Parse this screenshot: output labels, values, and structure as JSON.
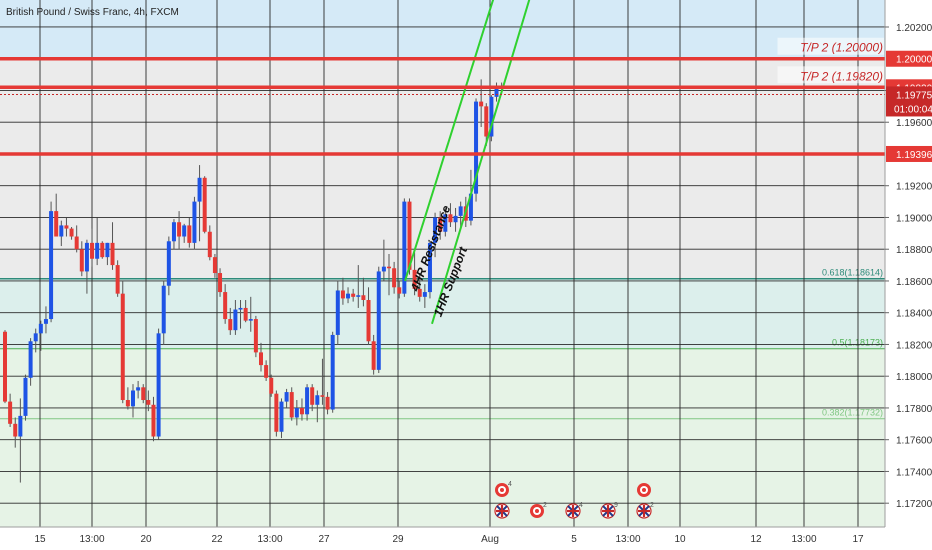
{
  "header": {
    "symbol_title": "British Pound / Swiss Franc, 4h, FXCM"
  },
  "colors": {
    "up": "#1e53e5",
    "down": "#e53935",
    "wick": "#555555",
    "zone_blue": "#d5eaf7",
    "zone_gray": "#ebebeb",
    "zone_teal": "#dcefec",
    "zone_green": "#e6f3e6",
    "grid": "#2a2a2a",
    "red_line": "#e53935",
    "green_line": "#2fd12f",
    "fib_618": "#2e8b7a",
    "fib_5": "#4caf50",
    "fib_382": "#81c784"
  },
  "chart_data": {
    "type": "candlestick",
    "ylim": [
      1.1705,
      1.2037
    ],
    "y_ticks": [
      {
        "v": 1.202,
        "label": "1.20200"
      },
      {
        "v": 1.198,
        "label": "1.19800"
      },
      {
        "v": 1.196,
        "label": "1.19600"
      },
      {
        "v": 1.192,
        "label": "1.19200"
      },
      {
        "v": 1.19,
        "label": "1.19000"
      },
      {
        "v": 1.188,
        "label": "1.18800"
      },
      {
        "v": 1.186,
        "label": "1.18600"
      },
      {
        "v": 1.184,
        "label": "1.18400"
      },
      {
        "v": 1.182,
        "label": "1.18200"
      },
      {
        "v": 1.18,
        "label": "1.18000"
      },
      {
        "v": 1.178,
        "label": "1.17800"
      },
      {
        "v": 1.176,
        "label": "1.17600"
      },
      {
        "v": 1.174,
        "label": "1.17400"
      },
      {
        "v": 1.172,
        "label": "1.17200"
      }
    ],
    "x_labels": [
      "15",
      "13:00",
      "20",
      "22",
      "13:00",
      "27",
      "29",
      "Aug",
      "5",
      "13:00",
      "10",
      "12",
      "13:00",
      "17"
    ],
    "candles": [
      [
        1.1828,
        1.1829,
        1.1783,
        1.1784
      ],
      [
        1.1784,
        1.1789,
        1.1768,
        1.177
      ],
      [
        1.177,
        1.1774,
        1.1755,
        1.1762
      ],
      [
        1.1762,
        1.1786,
        1.1733,
        1.1775
      ],
      [
        1.1775,
        1.1801,
        1.1772,
        1.1799
      ],
      [
        1.1799,
        1.1824,
        1.1794,
        1.1822
      ],
      [
        1.1822,
        1.183,
        1.1815,
        1.1827
      ],
      [
        1.1827,
        1.1835,
        1.1816,
        1.1833
      ],
      [
        1.1833,
        1.1844,
        1.1827,
        1.1836
      ],
      [
        1.1836,
        1.191,
        1.1834,
        1.1904
      ],
      [
        1.1904,
        1.1915,
        1.189,
        1.1888
      ],
      [
        1.1888,
        1.1898,
        1.1882,
        1.1895
      ],
      [
        1.1895,
        1.19,
        1.1888,
        1.1893
      ],
      [
        1.1893,
        1.1894,
        1.1886,
        1.1888
      ],
      [
        1.1888,
        1.1895,
        1.1878,
        1.188
      ],
      [
        1.188,
        1.1885,
        1.1863,
        1.1866
      ],
      [
        1.1866,
        1.1886,
        1.1852,
        1.1884
      ],
      [
        1.1884,
        1.1893,
        1.1869,
        1.1874
      ],
      [
        1.1874,
        1.19,
        1.187,
        1.1884
      ],
      [
        1.1884,
        1.1885,
        1.1874,
        1.1875
      ],
      [
        1.1875,
        1.1884,
        1.187,
        1.1884
      ],
      [
        1.1884,
        1.1897,
        1.1867,
        1.187
      ],
      [
        1.187,
        1.1873,
        1.185,
        1.1852
      ],
      [
        1.1852,
        1.186,
        1.1783,
        1.1785
      ],
      [
        1.1785,
        1.1793,
        1.1779,
        1.1781
      ],
      [
        1.1781,
        1.1795,
        1.1774,
        1.1791
      ],
      [
        1.1791,
        1.1797,
        1.1786,
        1.1793
      ],
      [
        1.1793,
        1.1795,
        1.1783,
        1.1785
      ],
      [
        1.1785,
        1.1791,
        1.1778,
        1.1782
      ],
      [
        1.1782,
        1.1787,
        1.1759,
        1.1762
      ],
      [
        1.1762,
        1.183,
        1.176,
        1.1827
      ],
      [
        1.1827,
        1.186,
        1.182,
        1.1857
      ],
      [
        1.1857,
        1.1888,
        1.1851,
        1.1885
      ],
      [
        1.1885,
        1.1899,
        1.188,
        1.1897
      ],
      [
        1.1897,
        1.1904,
        1.188,
        1.1888
      ],
      [
        1.1888,
        1.1896,
        1.1884,
        1.1895
      ],
      [
        1.1895,
        1.19,
        1.1881,
        1.1884
      ],
      [
        1.1884,
        1.1913,
        1.188,
        1.191
      ],
      [
        1.191,
        1.1933,
        1.1885,
        1.1925
      ],
      [
        1.1925,
        1.1926,
        1.189,
        1.1891
      ],
      [
        1.1891,
        1.1895,
        1.1873,
        1.1875
      ],
      [
        1.1875,
        1.1877,
        1.1862,
        1.1865
      ],
      [
        1.1865,
        1.1868,
        1.185,
        1.1853
      ],
      [
        1.1853,
        1.1858,
        1.1833,
        1.1836
      ],
      [
        1.1836,
        1.1843,
        1.1826,
        1.1829
      ],
      [
        1.1829,
        1.1848,
        1.1826,
        1.1842
      ],
      [
        1.1842,
        1.1848,
        1.183,
        1.1843
      ],
      [
        1.1843,
        1.1848,
        1.1834,
        1.1835
      ],
      [
        1.1835,
        1.185,
        1.1828,
        1.1836
      ],
      [
        1.1836,
        1.1838,
        1.1812,
        1.1815
      ],
      [
        1.1815,
        1.1821,
        1.1803,
        1.1807
      ],
      [
        1.1807,
        1.181,
        1.1797,
        1.1799
      ],
      [
        1.1799,
        1.1801,
        1.1787,
        1.1789
      ],
      [
        1.1789,
        1.1791,
        1.1762,
        1.1765
      ],
      [
        1.1765,
        1.1786,
        1.1761,
        1.1784
      ],
      [
        1.1784,
        1.1792,
        1.178,
        1.179
      ],
      [
        1.179,
        1.1793,
        1.1772,
        1.1774
      ],
      [
        1.1774,
        1.1785,
        1.1769,
        1.178
      ],
      [
        1.178,
        1.1786,
        1.1772,
        1.1776
      ],
      [
        1.1776,
        1.1795,
        1.1772,
        1.1793
      ],
      [
        1.1793,
        1.1795,
        1.1778,
        1.1782
      ],
      [
        1.1782,
        1.1791,
        1.1771,
        1.1788
      ],
      [
        1.1788,
        1.1811,
        1.1782,
        1.1787
      ],
      [
        1.1787,
        1.179,
        1.1776,
        1.1779
      ],
      [
        1.1779,
        1.1828,
        1.1777,
        1.1826
      ],
      [
        1.1826,
        1.186,
        1.182,
        1.1854
      ],
      [
        1.1854,
        1.1862,
        1.1845,
        1.1849
      ],
      [
        1.1849,
        1.1856,
        1.1846,
        1.1852
      ],
      [
        1.1852,
        1.1855,
        1.1847,
        1.185
      ],
      [
        1.185,
        1.187,
        1.1843,
        1.1851
      ],
      [
        1.1851,
        1.1862,
        1.1844,
        1.1848
      ],
      [
        1.1848,
        1.1856,
        1.182,
        1.1822
      ],
      [
        1.1822,
        1.1826,
        1.1801,
        1.1804
      ],
      [
        1.1804,
        1.1869,
        1.1802,
        1.1866
      ],
      [
        1.1866,
        1.1886,
        1.186,
        1.1869
      ],
      [
        1.1869,
        1.1877,
        1.1851,
        1.1868
      ],
      [
        1.1868,
        1.1872,
        1.1852,
        1.1856
      ],
      [
        1.1856,
        1.186,
        1.1849,
        1.1852
      ],
      [
        1.1852,
        1.1912,
        1.185,
        1.191
      ],
      [
        1.191,
        1.1912,
        1.1864,
        1.1867
      ],
      [
        1.1867,
        1.1878,
        1.1851,
        1.1855
      ],
      [
        1.1855,
        1.1865,
        1.1847,
        1.185
      ],
      [
        1.185,
        1.1858,
        1.1843,
        1.1853
      ],
      [
        1.1853,
        1.1885,
        1.1849,
        1.1884
      ],
      [
        1.1884,
        1.1903,
        1.1875,
        1.19
      ],
      [
        1.19,
        1.1904,
        1.1886,
        1.1891
      ],
      [
        1.1891,
        1.1906,
        1.1888,
        1.1902
      ],
      [
        1.1902,
        1.1909,
        1.1894,
        1.1897
      ],
      [
        1.1897,
        1.1906,
        1.1891,
        1.1901
      ],
      [
        1.1901,
        1.191,
        1.1893,
        1.1907
      ],
      [
        1.1907,
        1.1913,
        1.1894,
        1.1898
      ],
      [
        1.1898,
        1.193,
        1.1895,
        1.1915
      ],
      [
        1.1915,
        1.1975,
        1.191,
        1.1973
      ],
      [
        1.1973,
        1.1987,
        1.1957,
        1.197
      ],
      [
        1.197,
        1.1972,
        1.1945,
        1.1951
      ],
      [
        1.1951,
        1.1977,
        1.1948,
        1.1976
      ],
      [
        1.1976,
        1.1985,
        1.1973,
        1.1981
      ],
      [
        1.1981,
        1.1985,
        1.1978,
        1.1983
      ]
    ],
    "horizontal_levels": [
      {
        "v": 1.2,
        "label": "T/P 2 (1.20000)",
        "axis_label": "1.20000"
      },
      {
        "v": 1.1982,
        "label": "T/P 2 (1.19820)",
        "axis_label": "1.19820"
      },
      {
        "v": 1.194,
        "label": "",
        "axis_label": "1.19396"
      }
    ],
    "current_price": {
      "v": 1.19775,
      "label": "1.19775",
      "countdown": "01:00:04"
    },
    "fib_levels": [
      {
        "v": 1.18614,
        "label": "0.618(1.18614)"
      },
      {
        "v": 1.18173,
        "label": "0.5(1.18173)"
      },
      {
        "v": 1.17732,
        "label": "0.382(1.17732)"
      }
    ],
    "channel": {
      "resistance_label": "4HR Resistance",
      "support_label": "1HR Support"
    },
    "events": [
      {
        "type": "target",
        "count": "4"
      },
      {
        "type": "uk",
        "count": ""
      },
      {
        "type": "target",
        "count": "2"
      },
      {
        "type": "uk",
        "count": "4"
      },
      {
        "type": "uk",
        "count": "9"
      },
      {
        "type": "target",
        "count": ""
      },
      {
        "type": "uk",
        "count": "2"
      }
    ]
  }
}
